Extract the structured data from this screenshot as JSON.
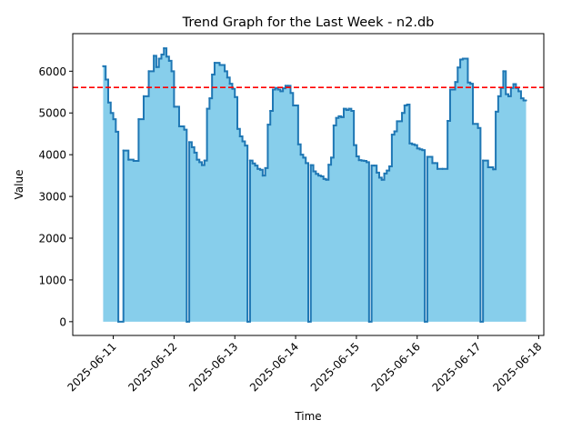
{
  "chart_data": {
    "type": "area",
    "title": "Trend Graph for the Last Week - n2.db",
    "xlabel": "Time",
    "ylabel": "Value",
    "xlim": [
      "2025-06-10T08:00",
      "2025-06-18T02:00"
    ],
    "ylim": [
      -330,
      6900
    ],
    "x_ticks": [
      "2025-06-11",
      "2025-06-12",
      "2025-06-13",
      "2025-06-14",
      "2025-06-15",
      "2025-06-16",
      "2025-06-17",
      "2025-06-18"
    ],
    "y_ticks": [
      0,
      1000,
      2000,
      3000,
      4000,
      5000,
      6000
    ],
    "step_style": "post",
    "fill_color": "#87ceeb",
    "line_color": "#1f77b4",
    "reference_line": {
      "value": 5610,
      "color": "#ff0000",
      "style": "dashed"
    },
    "series": [
      {
        "x": [
          "2025-06-10T20:00",
          "2025-06-10T21:00",
          "2025-06-10T22:00",
          "2025-06-10T23:00",
          "2025-06-11T00:00",
          "2025-06-11T01:00",
          "2025-06-11T02:00",
          "2025-06-11T04:00",
          "2025-06-11T06:00",
          "2025-06-11T08:00",
          "2025-06-11T10:00",
          "2025-06-11T12:00",
          "2025-06-11T14:00",
          "2025-06-11T16:00",
          "2025-06-11T17:00",
          "2025-06-11T18:00",
          "2025-06-11T19:00",
          "2025-06-11T20:00",
          "2025-06-11T21:00",
          "2025-06-11T22:00",
          "2025-06-11T23:00",
          "2025-06-12T00:00",
          "2025-06-12T02:00",
          "2025-06-12T04:00",
          "2025-06-12T05:00",
          "2025-06-12T06:00",
          "2025-06-12T07:00",
          "2025-06-12T08:00",
          "2025-06-12T09:00",
          "2025-06-12T10:00",
          "2025-06-12T11:00",
          "2025-06-12T12:00",
          "2025-06-12T13:00",
          "2025-06-12T14:00",
          "2025-06-12T15:00",
          "2025-06-12T16:00",
          "2025-06-12T18:00",
          "2025-06-12T20:00",
          "2025-06-12T21:00",
          "2025-06-12T22:00",
          "2025-06-12T23:00",
          "2025-06-13T00:00",
          "2025-06-13T01:00",
          "2025-06-13T02:00",
          "2025-06-13T03:00",
          "2025-06-13T04:00",
          "2025-06-13T05:00",
          "2025-06-13T06:00",
          "2025-06-13T07:00",
          "2025-06-13T08:00",
          "2025-06-13T09:00",
          "2025-06-13T10:00",
          "2025-06-13T11:00",
          "2025-06-13T12:00",
          "2025-06-13T13:00",
          "2025-06-13T14:00",
          "2025-06-13T15:00",
          "2025-06-13T16:00",
          "2025-06-13T17:00",
          "2025-06-13T18:00",
          "2025-06-13T19:00",
          "2025-06-13T20:00",
          "2025-06-13T21:00",
          "2025-06-13T22:00",
          "2025-06-13T23:00",
          "2025-06-14T00:00",
          "2025-06-14T01:00",
          "2025-06-14T02:00",
          "2025-06-14T03:00",
          "2025-06-14T04:00",
          "2025-06-14T05:00",
          "2025-06-14T06:00",
          "2025-06-14T07:00",
          "2025-06-14T08:00",
          "2025-06-14T09:00",
          "2025-06-14T10:00",
          "2025-06-14T11:00",
          "2025-06-14T12:00",
          "2025-06-14T13:00",
          "2025-06-14T14:00",
          "2025-06-14T15:00",
          "2025-06-14T16:00",
          "2025-06-14T17:00",
          "2025-06-14T18:00",
          "2025-06-14T19:00",
          "2025-06-14T20:00",
          "2025-06-14T21:00",
          "2025-06-14T22:00",
          "2025-06-14T23:00",
          "2025-06-15T00:00",
          "2025-06-15T01:00",
          "2025-06-15T02:00",
          "2025-06-15T03:00",
          "2025-06-15T04:00",
          "2025-06-15T05:00",
          "2025-06-15T06:00",
          "2025-06-15T07:00",
          "2025-06-15T08:00",
          "2025-06-15T09:00",
          "2025-06-15T10:00",
          "2025-06-15T11:00",
          "2025-06-15T12:00",
          "2025-06-15T13:00",
          "2025-06-15T14:00",
          "2025-06-15T15:00",
          "2025-06-15T16:00",
          "2025-06-15T17:00",
          "2025-06-15T18:00",
          "2025-06-15T19:00",
          "2025-06-15T20:00",
          "2025-06-15T21:00",
          "2025-06-15T22:00",
          "2025-06-15T23:00",
          "2025-06-16T00:00",
          "2025-06-16T01:00",
          "2025-06-16T02:00",
          "2025-06-16T03:00",
          "2025-06-16T04:00",
          "2025-06-16T06:00",
          "2025-06-16T07:00",
          "2025-06-16T08:00",
          "2025-06-16T10:00",
          "2025-06-16T12:00",
          "2025-06-16T13:00",
          "2025-06-16T14:00",
          "2025-06-16T15:00",
          "2025-06-16T16:00",
          "2025-06-16T17:00",
          "2025-06-16T18:00",
          "2025-06-16T20:00",
          "2025-06-16T21:00",
          "2025-06-16T22:00",
          "2025-06-17T00:00",
          "2025-06-17T01:00",
          "2025-06-17T02:00",
          "2025-06-17T04:00",
          "2025-06-17T06:00",
          "2025-06-17T07:00",
          "2025-06-17T08:00",
          "2025-06-17T09:00",
          "2025-06-17T10:00",
          "2025-06-17T11:00",
          "2025-06-17T12:00",
          "2025-06-17T13:00",
          "2025-06-17T14:00",
          "2025-06-17T15:00",
          "2025-06-17T16:00",
          "2025-06-17T17:00",
          "2025-06-17T18:00",
          "2025-06-17T19:00"
        ],
        "values": [
          6120,
          5800,
          5250,
          5000,
          4850,
          4550,
          0,
          4100,
          3880,
          3850,
          4850,
          5400,
          6000,
          6370,
          6100,
          6300,
          6400,
          6550,
          6350,
          6250,
          6000,
          5150,
          4680,
          4600,
          0,
          4300,
          4180,
          4050,
          3880,
          3820,
          3750,
          3860,
          5100,
          5350,
          5920,
          6200,
          6150,
          6000,
          5850,
          5700,
          5580,
          5380,
          4620,
          4440,
          4320,
          4220,
          0,
          3860,
          3790,
          3740,
          3660,
          3640,
          3500,
          3680,
          4720,
          5050,
          5560,
          5600,
          5560,
          5520,
          5590,
          5650,
          5650,
          5480,
          5180,
          5180,
          4250,
          4000,
          3930,
          3800,
          0,
          3750,
          3600,
          3540,
          3500,
          3480,
          3420,
          3400,
          3760,
          3930,
          4700,
          4880,
          4920,
          4900,
          5100,
          5070,
          5100,
          5050,
          4230,
          3960,
          3870,
          3860,
          3850,
          3820,
          0,
          3740,
          3740,
          3570,
          3450,
          3400,
          3550,
          3620,
          3720,
          4480,
          4560,
          4800,
          4800,
          5000,
          5180,
          5200,
          4270,
          4250,
          4230,
          4150,
          4130,
          4110,
          0,
          3950,
          3800,
          3800,
          3660,
          3660,
          4810,
          5560,
          5560,
          5740,
          6090,
          6280,
          6300,
          5730,
          5700,
          4740,
          4640,
          0,
          3860,
          3700,
          3650,
          5030,
          5400,
          5600,
          6000,
          5450,
          5400,
          5600,
          5690,
          5600,
          5520,
          5350,
          5300,
          5300
        ]
      }
    ]
  }
}
